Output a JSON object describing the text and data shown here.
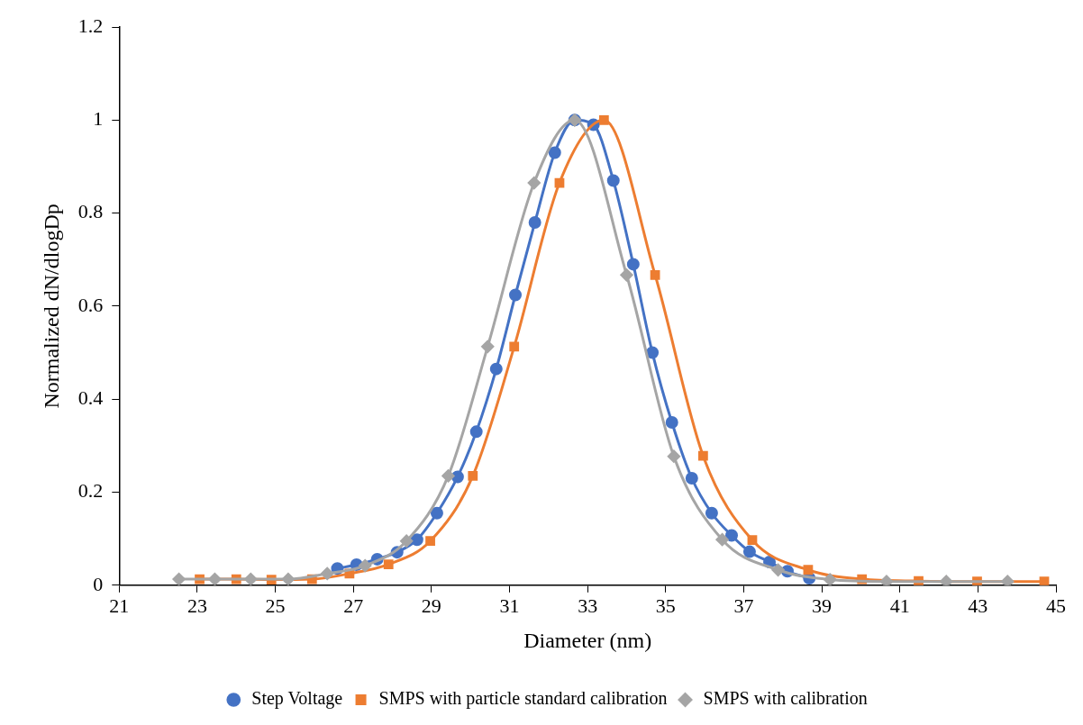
{
  "chart_data": {
    "type": "line",
    "xlabel": "Diameter (nm)",
    "ylabel": "Normalized dN/dlogDp",
    "xlim": [
      21,
      45
    ],
    "xticks": [
      21,
      23,
      25,
      27,
      29,
      31,
      33,
      35,
      37,
      39,
      41,
      43,
      45
    ],
    "ylim": [
      0,
      1.2
    ],
    "yticks": [
      0,
      0.2,
      0.4,
      0.6,
      0.8,
      1,
      1.2
    ],
    "grid": false,
    "legend": "bottom",
    "series": [
      {
        "name": "Step Voltage",
        "color": "#4472c4",
        "marker": "circle",
        "x": [
          26.59,
          27.08,
          27.61,
          28.12,
          28.63,
          29.14,
          29.67,
          30.15,
          30.66,
          31.15,
          31.65,
          32.16,
          32.67,
          33.15,
          33.66,
          34.17,
          34.66,
          35.16,
          35.67,
          36.18,
          36.69,
          37.15,
          37.66,
          38.12,
          38.68
        ],
        "values": [
          0.036,
          0.044,
          0.056,
          0.071,
          0.098,
          0.155,
          0.233,
          0.33,
          0.465,
          0.624,
          0.78,
          0.93,
          1.0,
          0.99,
          0.87,
          0.69,
          0.5,
          0.35,
          0.23,
          0.155,
          0.107,
          0.072,
          0.05,
          0.03,
          0.015
        ]
      },
      {
        "name": "SMPS with particle standard calibration",
        "color": "#ed7d31",
        "marker": "square",
        "x": [
          23.06,
          24.0,
          24.9,
          25.94,
          26.9,
          27.9,
          28.97,
          30.06,
          31.12,
          32.28,
          33.42,
          34.73,
          35.96,
          37.22,
          38.65,
          40.03,
          41.48,
          42.98,
          44.7
        ],
        "values": [
          0.013,
          0.013,
          0.012,
          0.013,
          0.025,
          0.045,
          0.095,
          0.235,
          0.513,
          0.865,
          1.0,
          0.667,
          0.278,
          0.097,
          0.033,
          0.013,
          0.009,
          0.008,
          0.008
        ]
      },
      {
        "name": "SMPS with calibration",
        "color": "#a5a5a5",
        "marker": "diamond",
        "x": [
          22.53,
          23.45,
          24.37,
          25.33,
          26.33,
          27.3,
          28.36,
          29.43,
          30.44,
          31.63,
          32.67,
          34.0,
          35.21,
          36.45,
          37.88,
          39.21,
          40.66,
          42.19,
          43.76
        ],
        "values": [
          0.013,
          0.013,
          0.013,
          0.013,
          0.025,
          0.042,
          0.095,
          0.235,
          0.513,
          0.865,
          1.0,
          0.667,
          0.277,
          0.098,
          0.033,
          0.012,
          0.008,
          0.008,
          0.008
        ]
      }
    ]
  }
}
